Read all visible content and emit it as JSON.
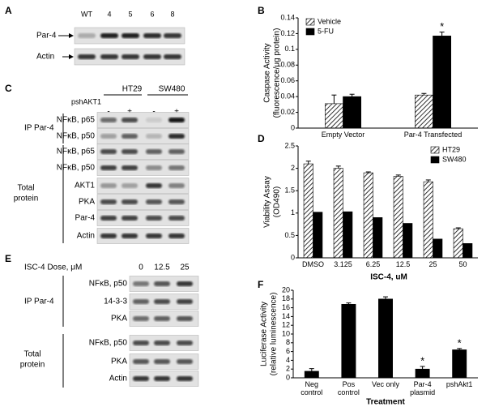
{
  "panel_labels": [
    "A",
    "B",
    "C",
    "D",
    "E",
    "F"
  ],
  "panel_a": {
    "lanes": [
      "WT",
      "4",
      "5",
      "6",
      "8"
    ],
    "rows": [
      "Par-4",
      "Actin"
    ]
  },
  "panel_c": {
    "groups": [
      "HT29",
      "SW480"
    ],
    "treatment": "pshAKT1",
    "signs": [
      "-",
      "+",
      "-",
      "+"
    ],
    "ip_label": "IP Par-4",
    "ip_rows": [
      "NFκB, p65",
      "NFκB, p50"
    ],
    "total_label": [
      "Total",
      "protein"
    ],
    "total_rows": [
      "NFκB, p65",
      "NFκB, p50",
      "AKT1",
      "PKA",
      "Par-4",
      "Actin"
    ]
  },
  "panel_e": {
    "dose_label": "ISC-4 Dose, μM",
    "lanes": [
      "0",
      "12.5",
      "25"
    ],
    "ip_label": "IP Par-4",
    "ip_rows": [
      "NFκB, p50",
      "14-3-3",
      "PKA"
    ],
    "total_label": [
      "Total",
      "protein"
    ],
    "total_rows": [
      "NFκB, p50",
      "PKA",
      "Actin"
    ]
  },
  "chart_data": [
    {
      "type": "bar",
      "ylabel": [
        "Caspase Activity",
        "(fluorescence/μg protein)"
      ],
      "categories": [
        "Empty Vector",
        "Par-4 Transfected"
      ],
      "series": [
        {
          "name": "Vehicle",
          "color": "#000000",
          "hatch": true,
          "values": [
            0.031,
            0.042
          ],
          "errors": [
            0.011,
            0.002
          ]
        },
        {
          "name": "5-FU",
          "color": "#000000",
          "hatch": false,
          "values": [
            0.04,
            0.117
          ],
          "errors": [
            0.003,
            0.005
          ]
        }
      ],
      "ylim": [
        0,
        0.14
      ],
      "yticks": [
        0,
        0.02,
        0.04,
        0.06,
        0.08,
        0.1,
        0.12,
        0.14
      ],
      "legend": "upper left",
      "annotations": [
        {
          "text": "*",
          "category": "Par-4 Transfected",
          "series": "5-FU"
        }
      ]
    },
    {
      "type": "bar",
      "ylabel": [
        "Viability Assay",
        "(OD490)"
      ],
      "xlabel": "ISC-4, uM",
      "categories": [
        "DMSO",
        "3.125",
        "6.25",
        "12.5",
        "25",
        "50"
      ],
      "series": [
        {
          "name": "HT29",
          "color": "#000000",
          "hatch": true,
          "values": [
            2.1,
            2.0,
            1.9,
            1.82,
            1.7,
            0.65
          ],
          "errors": [
            0.06,
            0.05,
            0.02,
            0.03,
            0.04,
            0.02
          ]
        },
        {
          "name": "SW480",
          "color": "#000000",
          "hatch": false,
          "values": [
            1.02,
            1.03,
            0.9,
            0.77,
            0.42,
            0.32
          ]
        }
      ],
      "ylim": [
        0,
        2.5
      ],
      "yticks": [
        0,
        0.5,
        1,
        1.5,
        2,
        2.5
      ],
      "legend": "upper right"
    },
    {
      "type": "bar",
      "ylabel": [
        "Luciferase Activity",
        "(relative luminescence)"
      ],
      "xlabel": "Treatment",
      "categories": [
        "Neg\ncontrol",
        "Pos\ncontrol",
        "Vec only",
        "Par-4\nplasmid",
        "pshAkt1"
      ],
      "values": [
        1.5,
        16.8,
        18,
        2,
        6.4
      ],
      "errors": [
        0.6,
        0.3,
        0.5,
        0.6,
        0.3
      ],
      "color": "#000000",
      "ylim": [
        0,
        20
      ],
      "yticks": [
        0,
        2,
        4,
        6,
        8,
        10,
        12,
        14,
        16,
        18,
        20
      ],
      "annotations": [
        {
          "text": "*",
          "category": "Par-4\nplasmid"
        },
        {
          "text": "*",
          "category": "pshAkt1"
        }
      ]
    }
  ]
}
